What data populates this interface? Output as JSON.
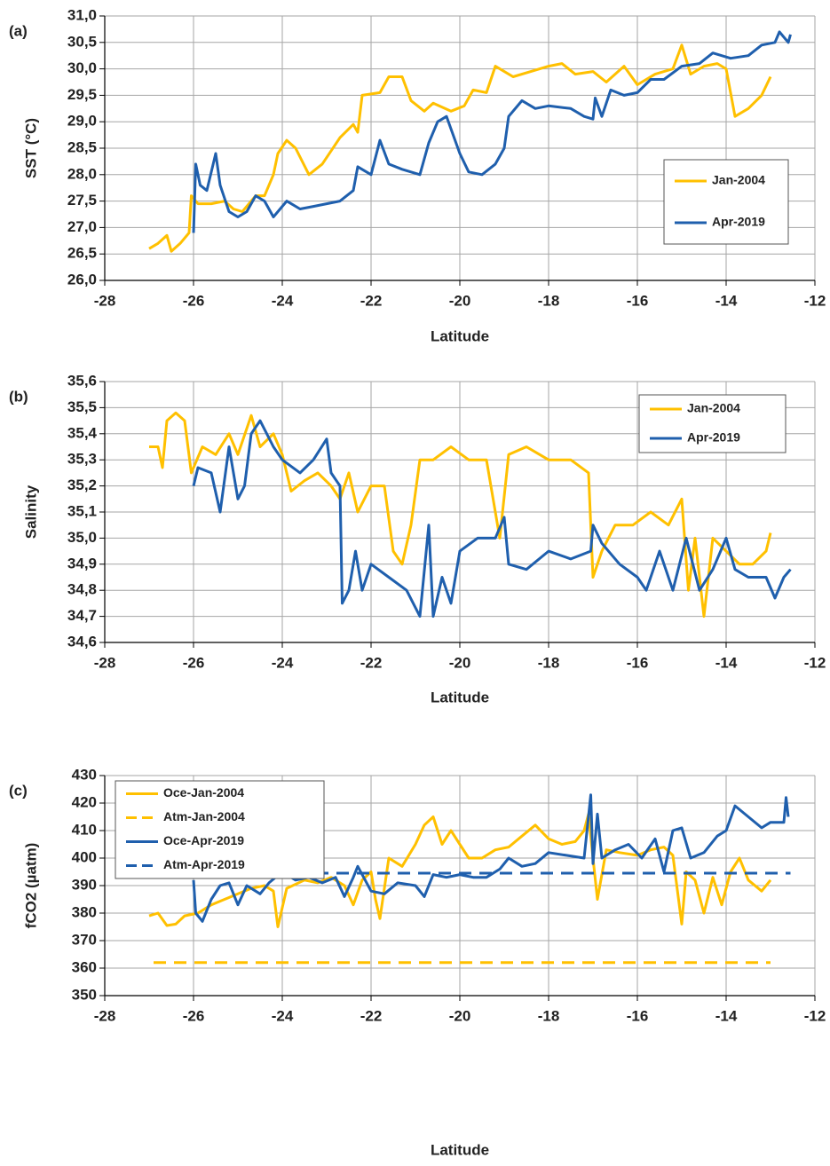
{
  "chart_data": [
    {
      "type": "line",
      "panel_label": "(a)",
      "ylabel": "SST (°C)",
      "xlabel": "Latitude",
      "grid": true,
      "legend_loc": "lower right",
      "xlim": [
        -28,
        -12
      ],
      "xticks": [
        -28,
        -26,
        -24,
        -22,
        -20,
        -18,
        -16,
        -14,
        -12
      ],
      "ylim": [
        26,
        31
      ],
      "yticks": [
        {
          "value": 26,
          "label": "26,0"
        },
        {
          "value": 26.5,
          "label": "26,5"
        },
        {
          "value": 27,
          "label": "27,0"
        },
        {
          "value": 27.5,
          "label": "27,5"
        },
        {
          "value": 28,
          "label": "28,0"
        },
        {
          "value": 28.5,
          "label": "28,5"
        },
        {
          "value": 29,
          "label": "29,0"
        },
        {
          "value": 29.5,
          "label": "29,5"
        },
        {
          "value": 30,
          "label": "30,0"
        },
        {
          "value": 30.5,
          "label": "30,5"
        },
        {
          "value": 31,
          "label": "31,0"
        }
      ],
      "series": [
        {
          "name": "Jan-2004",
          "color": "#FFC000",
          "x": [
            -27,
            -26.8,
            -26.6,
            -26.5,
            -26.3,
            -26.1,
            -26.05,
            -25.9,
            -25.6,
            -25.3,
            -25.1,
            -24.9,
            -24.6,
            -24.4,
            -24.2,
            -24.1,
            -23.9,
            -23.7,
            -23.4,
            -23.1,
            -22.7,
            -22.4,
            -22.3,
            -22.2,
            -21.8,
            -21.6,
            -21.3,
            -21.1,
            -20.8,
            -20.6,
            -20.2,
            -19.9,
            -19.7,
            -19.4,
            -19.2,
            -18.8,
            -18.4,
            -18,
            -17.7,
            -17.4,
            -17,
            -16.7,
            -16.3,
            -16,
            -15.6,
            -15.2,
            -15,
            -14.8,
            -14.5,
            -14.2,
            -14,
            -13.8,
            -13.5,
            -13.2,
            -13
          ],
          "values": [
            26.6,
            26.7,
            26.85,
            26.55,
            26.7,
            26.9,
            27.6,
            27.45,
            27.45,
            27.5,
            27.35,
            27.3,
            27.6,
            27.6,
            28,
            28.4,
            28.65,
            28.5,
            28,
            28.2,
            28.7,
            28.95,
            28.8,
            29.5,
            29.55,
            29.85,
            29.85,
            29.4,
            29.2,
            29.35,
            29.2,
            29.3,
            29.6,
            29.55,
            30.05,
            29.85,
            29.95,
            30.05,
            30.1,
            29.9,
            29.95,
            29.75,
            30.05,
            29.7,
            29.9,
            30,
            30.45,
            29.9,
            30.05,
            30.1,
            30,
            29.1,
            29.25,
            29.5,
            29.85
          ]
        },
        {
          "name": "Apr-2019",
          "color": "#1F5FAD",
          "x": [
            -26,
            -25.95,
            -25.85,
            -25.7,
            -25.5,
            -25.4,
            -25.2,
            -25,
            -24.8,
            -24.6,
            -24.4,
            -24.2,
            -23.9,
            -23.6,
            -23.3,
            -23,
            -22.7,
            -22.4,
            -22.3,
            -22,
            -21.8,
            -21.6,
            -21.3,
            -20.9,
            -20.7,
            -20.5,
            -20.3,
            -20,
            -19.8,
            -19.5,
            -19.2,
            -19,
            -18.9,
            -18.6,
            -18.3,
            -18,
            -17.5,
            -17.2,
            -17,
            -16.95,
            -16.8,
            -16.6,
            -16.3,
            -16,
            -15.7,
            -15.4,
            -15,
            -14.6,
            -14.3,
            -13.9,
            -13.5,
            -13.2,
            -12.9,
            -12.8,
            -12.6,
            -12.55
          ],
          "values": [
            26.9,
            28.2,
            27.8,
            27.7,
            28.4,
            27.8,
            27.3,
            27.2,
            27.3,
            27.6,
            27.5,
            27.2,
            27.5,
            27.35,
            27.4,
            27.45,
            27.5,
            27.7,
            28.15,
            28,
            28.65,
            28.2,
            28.1,
            28,
            28.6,
            29,
            29.1,
            28.4,
            28.05,
            28,
            28.2,
            28.5,
            29.1,
            29.4,
            29.25,
            29.3,
            29.25,
            29.1,
            29.05,
            29.45,
            29.1,
            29.6,
            29.5,
            29.55,
            29.8,
            29.8,
            30.05,
            30.1,
            30.3,
            30.2,
            30.25,
            30.45,
            30.5,
            30.7,
            30.5,
            30.65
          ]
        }
      ]
    },
    {
      "type": "line",
      "panel_label": "(b)",
      "ylabel": "Salinity",
      "xlabel": "Latitude",
      "grid": true,
      "legend_loc": "upper right",
      "xlim": [
        -28,
        -12
      ],
      "xticks": [
        -28,
        -26,
        -24,
        -22,
        -20,
        -18,
        -16,
        -14,
        -12
      ],
      "ylim": [
        34.6,
        35.6
      ],
      "yticks": [
        {
          "value": 34.6,
          "label": "34,6"
        },
        {
          "value": 34.7,
          "label": "34,7"
        },
        {
          "value": 34.8,
          "label": "34,8"
        },
        {
          "value": 34.9,
          "label": "34,9"
        },
        {
          "value": 35,
          "label": "35,0"
        },
        {
          "value": 35.1,
          "label": "35,1"
        },
        {
          "value": 35.2,
          "label": "35,2"
        },
        {
          "value": 35.3,
          "label": "35,3"
        },
        {
          "value": 35.4,
          "label": "35,4"
        },
        {
          "value": 35.5,
          "label": "35,5"
        },
        {
          "value": 35.6,
          "label": "35,6"
        }
      ],
      "series": [
        {
          "name": "Jan-2004",
          "color": "#FFC000",
          "x": [
            -27,
            -26.8,
            -26.7,
            -26.6,
            -26.4,
            -26.2,
            -26.05,
            -25.8,
            -25.5,
            -25.2,
            -25,
            -24.7,
            -24.5,
            -24.2,
            -24,
            -23.8,
            -23.5,
            -23.2,
            -22.9,
            -22.7,
            -22.5,
            -22.3,
            -22,
            -21.7,
            -21.5,
            -21.3,
            -21.1,
            -20.9,
            -20.6,
            -20.2,
            -19.8,
            -19.4,
            -19.1,
            -18.9,
            -18.5,
            -18,
            -17.5,
            -17.1,
            -17,
            -16.8,
            -16.5,
            -16.1,
            -15.7,
            -15.3,
            -15,
            -14.85,
            -14.7,
            -14.5,
            -14.3,
            -14,
            -13.7,
            -13.4,
            -13.1,
            -13
          ],
          "values": [
            35.35,
            35.35,
            35.27,
            35.45,
            35.48,
            35.45,
            35.25,
            35.35,
            35.32,
            35.4,
            35.32,
            35.47,
            35.35,
            35.4,
            35.32,
            35.18,
            35.22,
            35.25,
            35.2,
            35.15,
            35.25,
            35.1,
            35.2,
            35.2,
            34.95,
            34.9,
            35.05,
            35.3,
            35.3,
            35.35,
            35.3,
            35.3,
            35,
            35.32,
            35.35,
            35.3,
            35.3,
            35.25,
            34.85,
            34.95,
            35.05,
            35.05,
            35.1,
            35.05,
            35.15,
            34.8,
            35,
            34.7,
            35,
            34.95,
            34.9,
            34.9,
            34.95,
            35.02
          ]
        },
        {
          "name": "Apr-2019",
          "color": "#1F5FAD",
          "x": [
            -26,
            -25.9,
            -25.6,
            -25.4,
            -25.2,
            -25,
            -24.85,
            -24.7,
            -24.5,
            -24.2,
            -24,
            -23.6,
            -23.3,
            -23,
            -22.9,
            -22.7,
            -22.65,
            -22.5,
            -22.35,
            -22.2,
            -22,
            -21.6,
            -21.2,
            -20.9,
            -20.7,
            -20.6,
            -20.4,
            -20.2,
            -20,
            -19.6,
            -19.2,
            -19,
            -18.9,
            -18.5,
            -18,
            -17.5,
            -17.05,
            -17,
            -16.8,
            -16.4,
            -16,
            -15.8,
            -15.5,
            -15.2,
            -14.9,
            -14.6,
            -14.3,
            -14,
            -13.8,
            -13.5,
            -13.1,
            -12.9,
            -12.7,
            -12.55
          ],
          "values": [
            35.2,
            35.27,
            35.25,
            35.1,
            35.35,
            35.15,
            35.2,
            35.4,
            35.45,
            35.35,
            35.3,
            35.25,
            35.3,
            35.38,
            35.25,
            35.2,
            34.75,
            34.8,
            34.95,
            34.8,
            34.9,
            34.85,
            34.8,
            34.7,
            35.05,
            34.7,
            34.85,
            34.75,
            34.95,
            35,
            35,
            35.08,
            34.9,
            34.88,
            34.95,
            34.92,
            34.95,
            35.05,
            34.98,
            34.9,
            34.85,
            34.8,
            34.95,
            34.8,
            35,
            34.8,
            34.88,
            35,
            34.88,
            34.85,
            34.85,
            34.77,
            34.85,
            34.88
          ]
        }
      ]
    },
    {
      "type": "line",
      "panel_label": "(c)",
      "ylabel": "fCO2 (µatm)",
      "xlabel": "Latitude",
      "grid": true,
      "legend_loc": "upper left",
      "xlim": [
        -28,
        -12
      ],
      "xticks": [
        -28,
        -26,
        -24,
        -22,
        -20,
        -18,
        -16,
        -14,
        -12
      ],
      "ylim": [
        350,
        430
      ],
      "yticks": [
        350,
        360,
        370,
        380,
        390,
        400,
        410,
        420,
        430
      ],
      "series": [
        {
          "name": "Oce-Jan-2004",
          "color": "#FFC000",
          "dash": false,
          "x": [
            -27,
            -26.8,
            -26.6,
            -26.4,
            -26.2,
            -25.9,
            -25.6,
            -25.3,
            -25,
            -24.7,
            -24.4,
            -24.2,
            -24.1,
            -23.9,
            -23.5,
            -23.2,
            -22.9,
            -22.6,
            -22.4,
            -22.2,
            -22,
            -21.9,
            -21.8,
            -21.6,
            -21.3,
            -21,
            -20.8,
            -20.6,
            -20.4,
            -20.2,
            -20,
            -19.8,
            -19.5,
            -19.2,
            -18.9,
            -18.6,
            -18.3,
            -18,
            -17.7,
            -17.4,
            -17.2,
            -17.1,
            -17,
            -16.9,
            -16.7,
            -16.4,
            -16,
            -15.7,
            -15.4,
            -15.2,
            -15,
            -14.9,
            -14.7,
            -14.5,
            -14.3,
            -14.1,
            -13.9,
            -13.7,
            -13.5,
            -13.2,
            -13
          ],
          "values": [
            379,
            380,
            375.5,
            376,
            379,
            380,
            383,
            385,
            387,
            389,
            390,
            388,
            375,
            389,
            392,
            391,
            393,
            390,
            383,
            392,
            395,
            385,
            378,
            400,
            397,
            405,
            412,
            415,
            405,
            410,
            405,
            400,
            400,
            403,
            404,
            408,
            412,
            407,
            405,
            406,
            410,
            416,
            400,
            385,
            403,
            402,
            401,
            403,
            404,
            401,
            376,
            395,
            392,
            380,
            393,
            383,
            395,
            400,
            392,
            388,
            392
          ]
        },
        {
          "name": "Atm-Jan-2004",
          "color": "#FFC000",
          "dash": true,
          "x": [
            -26.9,
            -13
          ],
          "values": [
            362,
            362
          ]
        },
        {
          "name": "Oce-Apr-2019",
          "color": "#1F5FAD",
          "dash": false,
          "x": [
            -26,
            -25.95,
            -25.8,
            -25.6,
            -25.4,
            -25.2,
            -25,
            -24.8,
            -24.5,
            -24.3,
            -24,
            -23.7,
            -23.4,
            -23.1,
            -22.8,
            -22.6,
            -22.4,
            -22.3,
            -22,
            -21.7,
            -21.4,
            -21,
            -20.8,
            -20.6,
            -20.3,
            -20,
            -19.7,
            -19.4,
            -19.1,
            -18.9,
            -18.6,
            -18.3,
            -18,
            -17.6,
            -17.2,
            -17.05,
            -17,
            -16.9,
            -16.8,
            -16.5,
            -16.2,
            -15.9,
            -15.6,
            -15.4,
            -15.2,
            -15,
            -14.8,
            -14.5,
            -14.2,
            -14,
            -13.8,
            -13.5,
            -13.2,
            -13,
            -12.7,
            -12.65,
            -12.6
          ],
          "values": [
            392,
            380,
            377,
            385,
            390,
            391,
            383,
            390,
            387,
            391,
            395,
            392,
            393,
            391,
            393,
            386,
            393,
            397,
            388,
            387,
            391,
            390,
            386,
            394,
            393,
            394,
            393,
            393,
            396,
            400,
            397,
            398,
            402,
            401,
            400,
            423,
            398,
            416,
            400,
            403,
            405,
            400,
            407,
            395,
            410,
            411,
            400,
            402,
            408,
            410,
            419,
            415,
            411,
            413,
            413,
            422,
            415
          ]
        },
        {
          "name": "Atm-Apr-2019",
          "color": "#1F5FAD",
          "dash": true,
          "x": [
            -26,
            -12.55
          ],
          "values": [
            394.5,
            394.5
          ]
        }
      ]
    }
  ]
}
